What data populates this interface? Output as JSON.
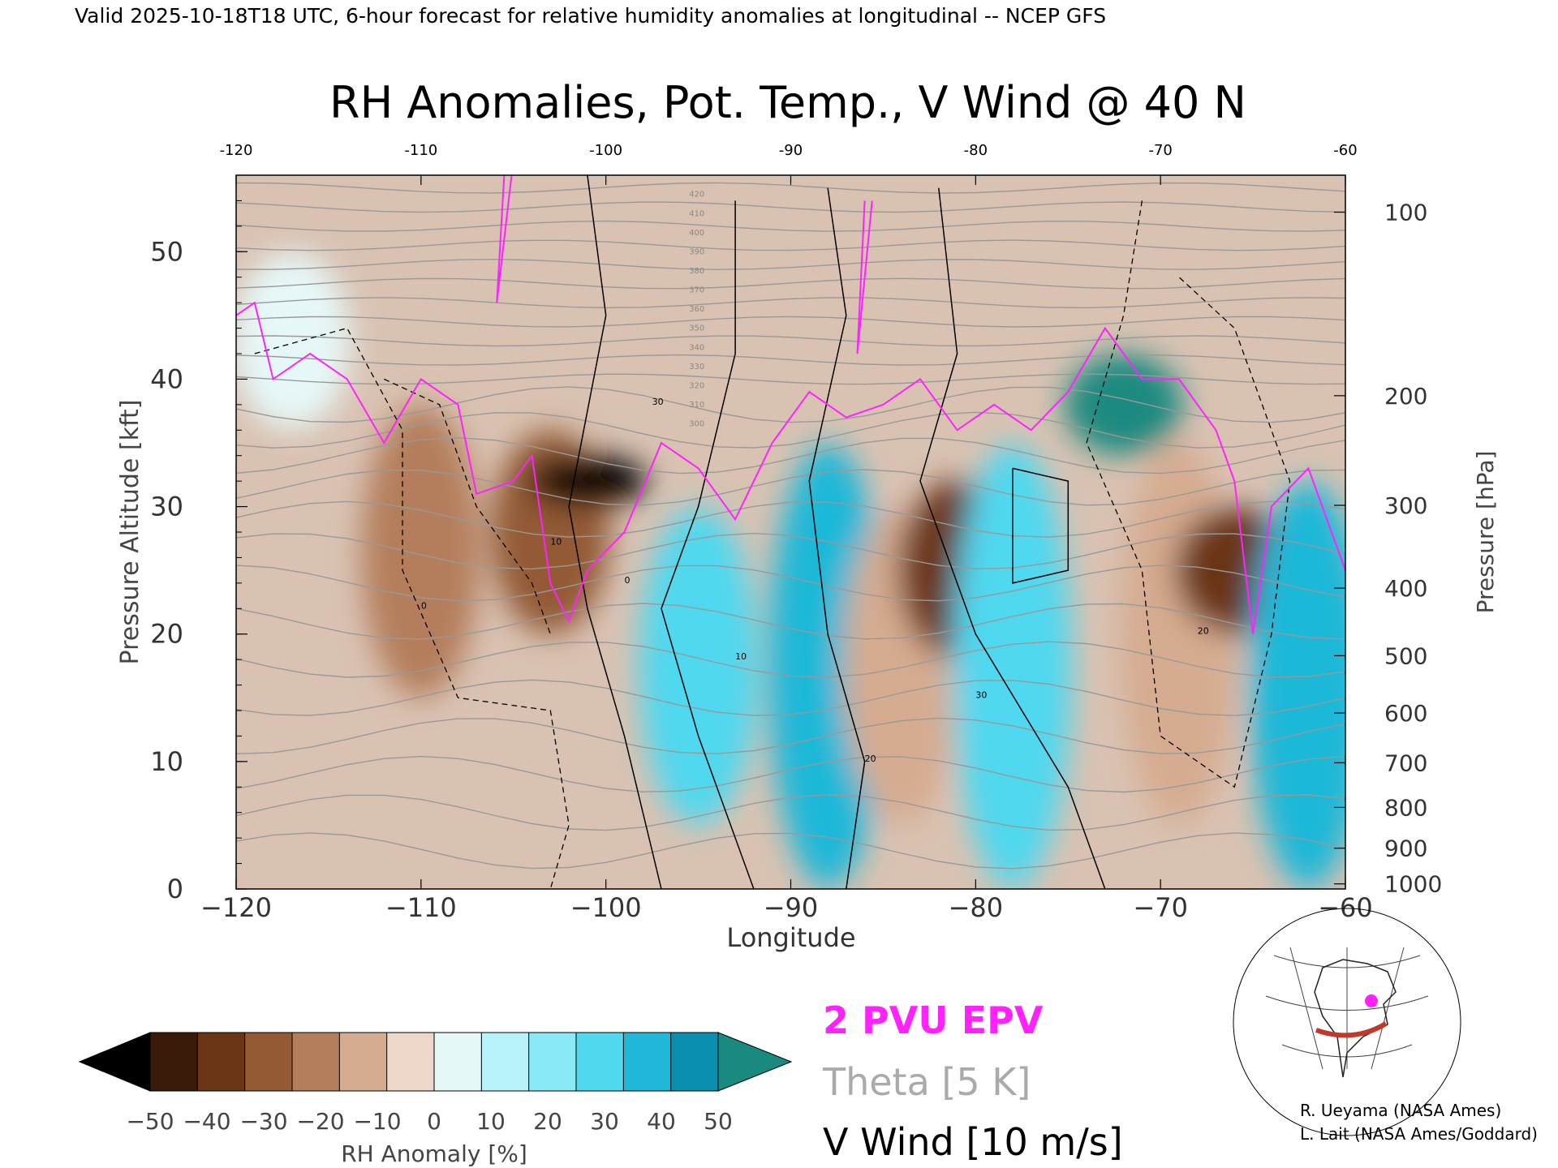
{
  "header": {
    "valid_line": "Valid 2025-10-18T18 UTC, 6-hour forecast for relative humidity anomalies at longitudinal -- NCEP GFS"
  },
  "chart_data": {
    "type": "heatmap",
    "title": "RH Anomalies, Pot. Temp., V Wind @ 40 N",
    "xlabel": "Longitude",
    "ylabel_left": "Pressure Altitude [kft]",
    "ylabel_right": "Pressure [hPa]",
    "xlim": [
      -120,
      -60
    ],
    "ylim": [
      0,
      56
    ],
    "x_ticks": [
      -120,
      -110,
      -100,
      -90,
      -80,
      -70,
      -60
    ],
    "x_tick_labels": [
      "−120",
      "−110",
      "−100",
      "−90",
      "−80",
      "−70",
      "−60"
    ],
    "top_tick_labels": [
      "-120",
      "-110",
      "-100",
      "-90",
      "-80",
      "-70",
      "-60"
    ],
    "y_ticks": [
      0,
      10,
      20,
      30,
      40,
      50
    ],
    "pressure_ticks": [
      {
        "label": "100",
        "kft": 53.1
      },
      {
        "label": "200",
        "kft": 38.7
      },
      {
        "label": "300",
        "kft": 30.1
      },
      {
        "label": "400",
        "kft": 23.6
      },
      {
        "label": "500",
        "kft": 18.3
      },
      {
        "label": "600",
        "kft": 13.8
      },
      {
        "label": "700",
        "kft": 9.9
      },
      {
        "label": "800",
        "kft": 6.4
      },
      {
        "label": "900",
        "kft": 3.2
      },
      {
        "label": "1000",
        "kft": 0.4
      }
    ],
    "rh_anomaly_bands": [
      {
        "lon_center": -117,
        "value": 8,
        "alt_range": [
          36,
          50
        ]
      },
      {
        "lon_center": -110,
        "value": -25,
        "alt_range": [
          15,
          38
        ]
      },
      {
        "lon_center": -103,
        "value": -38,
        "alt_range": [
          20,
          36
        ]
      },
      {
        "lon_center": -101,
        "value": -50,
        "alt_range": [
          30,
          34
        ]
      },
      {
        "lon_center": -95,
        "value": 35,
        "alt_range": [
          5,
          30
        ]
      },
      {
        "lon_center": -88,
        "value": 42,
        "alt_range": [
          0,
          35
        ]
      },
      {
        "lon_center": -84,
        "value": -15,
        "alt_range": [
          5,
          30
        ]
      },
      {
        "lon_center": -81,
        "value": -45,
        "alt_range": [
          18,
          32
        ]
      },
      {
        "lon_center": -78,
        "value": 38,
        "alt_range": [
          0,
          35
        ]
      },
      {
        "lon_center": -72,
        "value": 50,
        "alt_range": [
          34,
          42
        ]
      },
      {
        "lon_center": -69,
        "value": -18,
        "alt_range": [
          5,
          35
        ]
      },
      {
        "lon_center": -66,
        "value": -48,
        "alt_range": [
          20,
          30
        ]
      },
      {
        "lon_center": -62,
        "value": 40,
        "alt_range": [
          0,
          32
        ]
      }
    ],
    "theta_labels": [
      "420",
      "410",
      "400",
      "390",
      "380",
      "370",
      "360",
      "350",
      "340",
      "330",
      "320",
      "310",
      "300"
    ],
    "vwind_labels": [
      "0",
      "10",
      "20",
      "30"
    ],
    "legend": {
      "epv": "2 PVU EPV",
      "theta": "Theta [5 K]",
      "vwind": "V Wind [10 m/s]"
    },
    "colorbar": {
      "label": "RH Anomaly [%]",
      "tick_labels": [
        "−50",
        "−40",
        "−30",
        "−20",
        "−10",
        "0",
        "10",
        "20",
        "30",
        "40",
        "50"
      ],
      "colors": [
        "#000000",
        "#3a1a08",
        "#6a3514",
        "#935a34",
        "#b47e5c",
        "#d6ac90",
        "#ecd7c8",
        "#e6f7f7",
        "#b8f3fb",
        "#8ae9f7",
        "#50d8ef",
        "#1fb8d8",
        "#0a8fb0",
        "#1a8a80"
      ]
    },
    "epv_color": "#ff22ff",
    "theta_color": "#999999"
  },
  "credits": {
    "line1": "R. Ueyama (NASA Ames)",
    "line2": "L. Lait (NASA Ames/Goddard)"
  }
}
